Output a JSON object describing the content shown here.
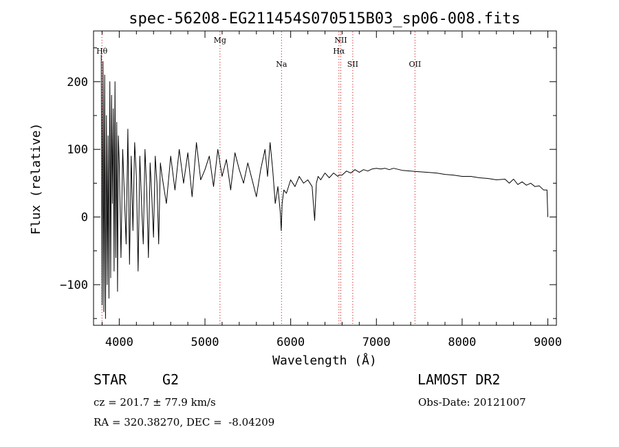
{
  "chart_data": {
    "type": "line",
    "title": "spec-56208-EG211454S070515B03_sp06-008.fits",
    "xlabel": "Wavelength (Å)",
    "ylabel": "Flux (relative)",
    "xlim": [
      3700,
      9100
    ],
    "ylim": [
      -160,
      275
    ],
    "x_ticks": [
      4000,
      5000,
      6000,
      7000,
      8000,
      9000
    ],
    "y_ticks": [
      -100,
      0,
      100,
      200
    ],
    "grid": false,
    "legend": "none",
    "line_color": "#000000",
    "marker_color": "#cc0000",
    "series": [
      {
        "x": [
          3790,
          3800,
          3810,
          3820,
          3830,
          3840,
          3850,
          3860,
          3870,
          3880,
          3890,
          3900,
          3910,
          3920,
          3930,
          3940,
          3950,
          3960,
          3970,
          3980,
          3990,
          4000,
          4020,
          4040,
          4060,
          4080,
          4100,
          4120,
          4140,
          4160,
          4180,
          4200,
          4220,
          4240,
          4260,
          4280,
          4300,
          4320,
          4340,
          4360,
          4380,
          4400,
          4420,
          4440,
          4460,
          4480,
          4500,
          4550,
          4600,
          4650,
          4700,
          4750,
          4800,
          4850,
          4900,
          4950,
          5000,
          5050,
          5100,
          5150,
          5200,
          5250,
          5300,
          5350,
          5400,
          5450,
          5500,
          5550,
          5600,
          5650,
          5700,
          5730,
          5760,
          5790,
          5820,
          5850,
          5880,
          5890,
          5900,
          5920,
          5950,
          6000,
          6050,
          6100,
          6150,
          6200,
          6250,
          6280,
          6300,
          6320,
          6350,
          6400,
          6450,
          6500,
          6550,
          6563,
          6600,
          6650,
          6700,
          6750,
          6800,
          6850,
          6900,
          6950,
          7000,
          7050,
          7100,
          7150,
          7200,
          7300,
          7400,
          7500,
          7600,
          7700,
          7800,
          7900,
          8000,
          8100,
          8200,
          8300,
          8400,
          8500,
          8550,
          8600,
          8650,
          8700,
          8750,
          8800,
          8850,
          8900,
          8950,
          8990,
          9000
        ],
        "y": [
          240,
          -130,
          230,
          -140,
          210,
          -150,
          150,
          -100,
          120,
          -120,
          200,
          -90,
          180,
          20,
          160,
          -80,
          200,
          -60,
          140,
          -110,
          120,
          80,
          -60,
          100,
          30,
          -40,
          130,
          -70,
          90,
          -20,
          110,
          60,
          -80,
          90,
          20,
          -40,
          100,
          40,
          -60,
          80,
          30,
          -30,
          90,
          50,
          -40,
          80,
          60,
          20,
          90,
          40,
          100,
          50,
          95,
          30,
          110,
          55,
          70,
          90,
          45,
          100,
          60,
          85,
          40,
          95,
          70,
          50,
          80,
          55,
          30,
          70,
          100,
          60,
          110,
          70,
          20,
          45,
          5,
          -20,
          20,
          40,
          35,
          55,
          45,
          60,
          50,
          55,
          45,
          -5,
          50,
          60,
          55,
          65,
          58,
          65,
          60,
          62,
          62,
          68,
          65,
          70,
          66,
          70,
          68,
          71,
          72,
          71,
          72,
          70,
          72,
          69,
          68,
          67,
          66,
          65,
          63,
          62,
          60,
          60,
          58,
          57,
          55,
          56,
          50,
          56,
          48,
          52,
          47,
          50,
          45,
          46,
          40,
          40,
          0
        ]
      }
    ],
    "line_markers": [
      {
        "label": "Hθ",
        "x": 3798,
        "row": 1
      },
      {
        "label": "Mg",
        "x": 5175,
        "row": 0
      },
      {
        "label": "Na",
        "x": 5893,
        "row": 2
      },
      {
        "label": "NII",
        "x": 6584,
        "row": 0
      },
      {
        "label": "Hα",
        "x": 6563,
        "row": 1
      },
      {
        "label": "SII",
        "x": 6724,
        "row": 2
      },
      {
        "label": "OII",
        "x": 7450,
        "row": 2
      }
    ]
  },
  "info": {
    "class_label": "STAR",
    "subclass_label": "G2",
    "survey": "LAMOST DR2",
    "velocity": "cz = 201.7 ± 77.9 km/s",
    "obs_date": "Obs-Date: 20121007",
    "coordinates": "RA = 320.38270, DEC =  -8.04209"
  }
}
